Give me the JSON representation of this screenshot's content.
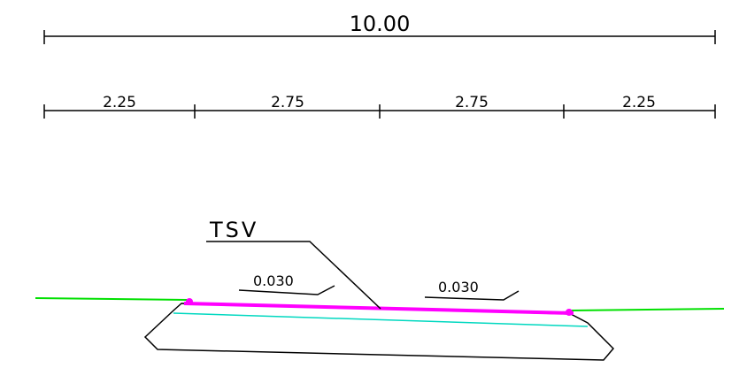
{
  "total_dimension": "10.00",
  "segment_dimensions": [
    "2.25",
    "2.75",
    "2.75",
    "2.25"
  ],
  "callout_label": "TSV",
  "slope_left": "0.030",
  "slope_right": "0.030",
  "colors": {
    "dimension_lines": "#000000",
    "pavement_surface": "#ff00ff",
    "base_layer": "#00d8c0",
    "ground_line": "#00e000",
    "outline": "#000000"
  }
}
